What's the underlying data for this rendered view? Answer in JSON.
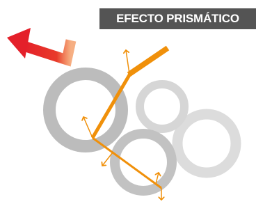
{
  "header": {
    "title": "EFECTO PRISMÁTICO"
  }
}
